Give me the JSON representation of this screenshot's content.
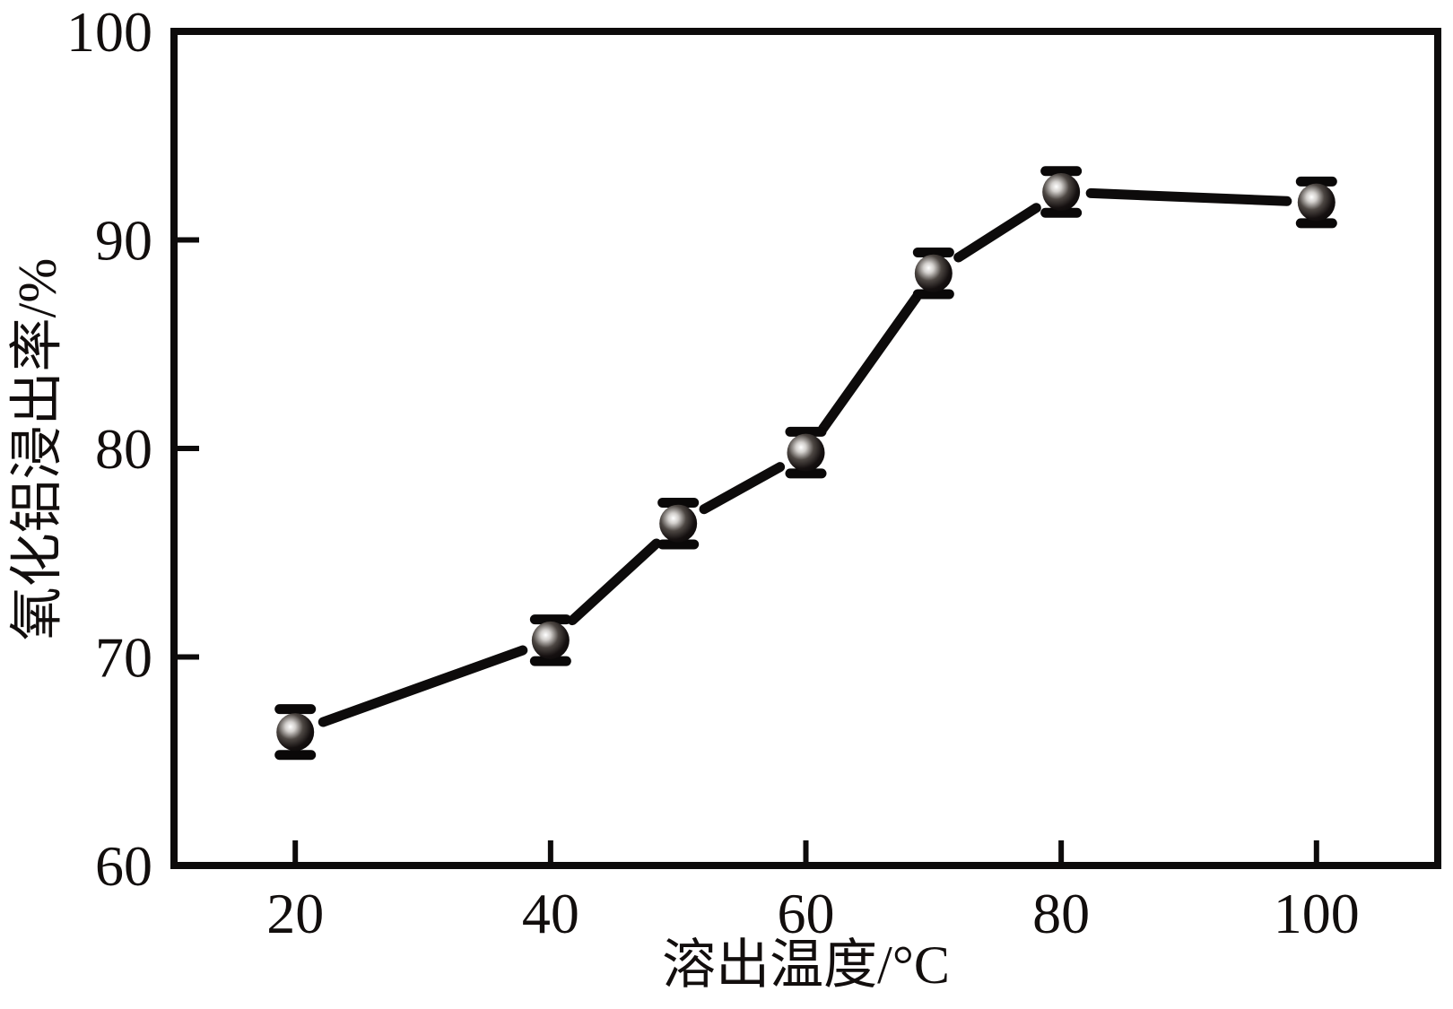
{
  "chart_data": {
    "type": "line",
    "title": "",
    "xlabel": "溶出温度/°C",
    "ylabel": "氧化铝浸出率/%",
    "xlim": [
      10.5,
      109.5
    ],
    "ylim": [
      60,
      100
    ],
    "xticks": [
      20,
      40,
      60,
      80,
      100
    ],
    "yticks": [
      60,
      70,
      80,
      90,
      100
    ],
    "grid": false,
    "legend": "none",
    "marker": "glossy-sphere-with-error-bars",
    "colors": {
      "line": "#0d0b0b",
      "marker": "#0a0808",
      "text": "#120e0d",
      "background": "#ffffff"
    },
    "series": [
      {
        "name": "氧化铝浸出率",
        "x": [
          20,
          40,
          50,
          60,
          70,
          80,
          100
        ],
        "y": [
          66.4,
          70.8,
          76.4,
          79.8,
          88.4,
          92.3,
          91.8
        ],
        "yerr": [
          1.1,
          1.0,
          1.0,
          1.0,
          1.0,
          1.0,
          1.0
        ]
      }
    ]
  }
}
